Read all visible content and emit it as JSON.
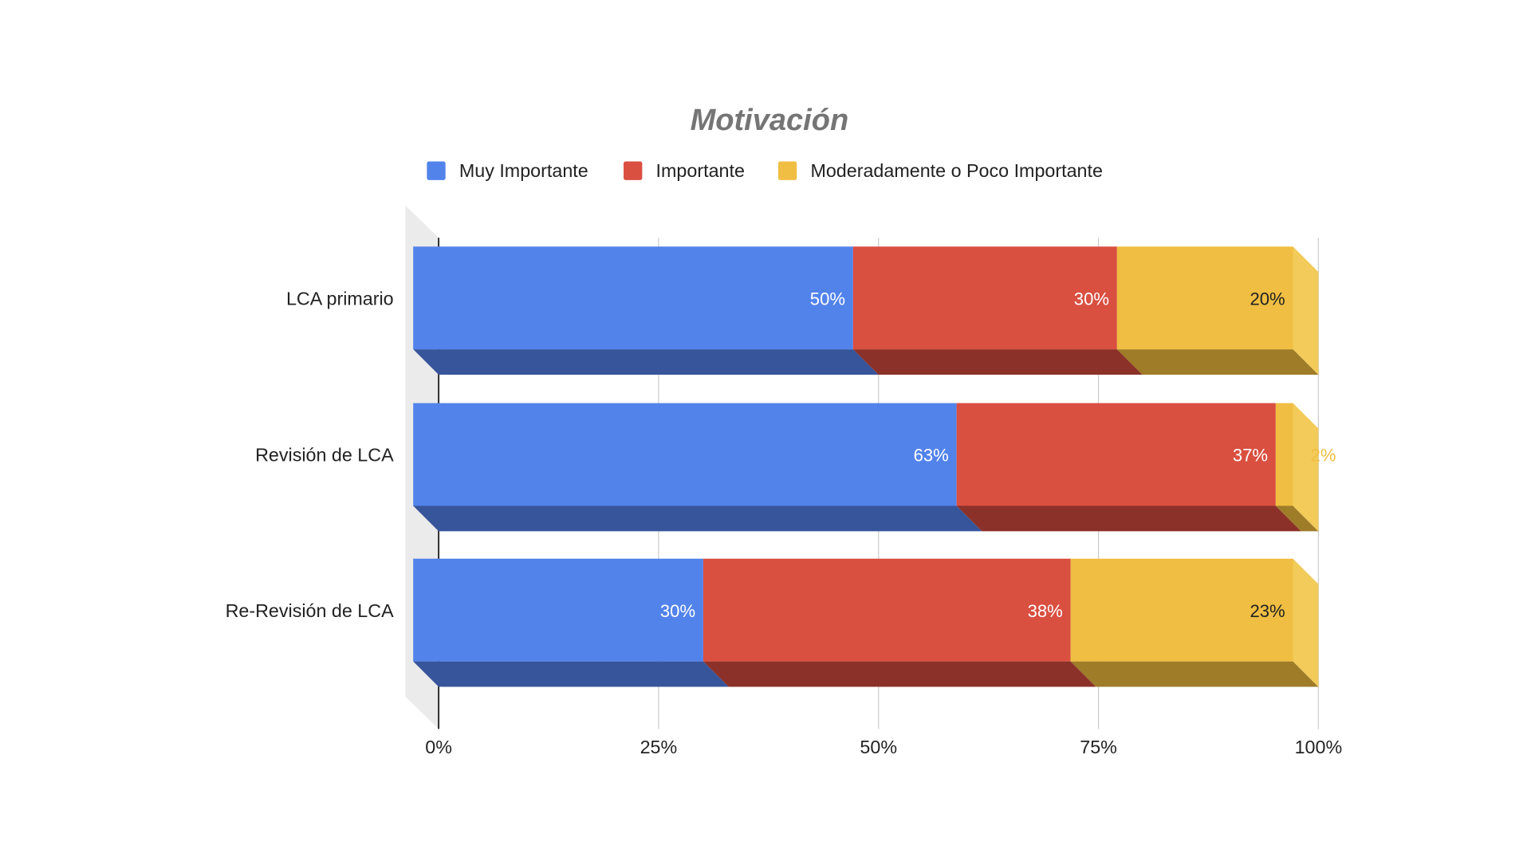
{
  "chart_data": {
    "type": "bar",
    "orientation": "horizontal",
    "stacked": "percent",
    "three_d": true,
    "title": "Motivación",
    "xlabel": "",
    "ylabel": "",
    "xlim": [
      0,
      100
    ],
    "grid": true,
    "legend_position": "top",
    "categories": [
      "LCA primario",
      "Revisión de LCA",
      "Re-Revisión de LCA"
    ],
    "series": [
      {
        "name": "Muy Importante",
        "color": "#5283eb",
        "shade": "#37559b",
        "values": [
          50,
          63,
          30
        ],
        "labels": [
          "50%",
          "63%",
          "30%"
        ]
      },
      {
        "name": "Importante",
        "color": "#d94f40",
        "shade": "#8b3129",
        "values": [
          30,
          37,
          38
        ],
        "labels": [
          "30%",
          "37%",
          "38%"
        ]
      },
      {
        "name": "Moderadamente o Poco Importante",
        "color": "#f0be42",
        "shade": "#9e7c28",
        "values": [
          20,
          2,
          23
        ],
        "labels": [
          "20%",
          "2%",
          "23%"
        ]
      }
    ],
    "x_ticks": [
      "0%",
      "25%",
      "50%",
      "75%",
      "100%"
    ]
  }
}
